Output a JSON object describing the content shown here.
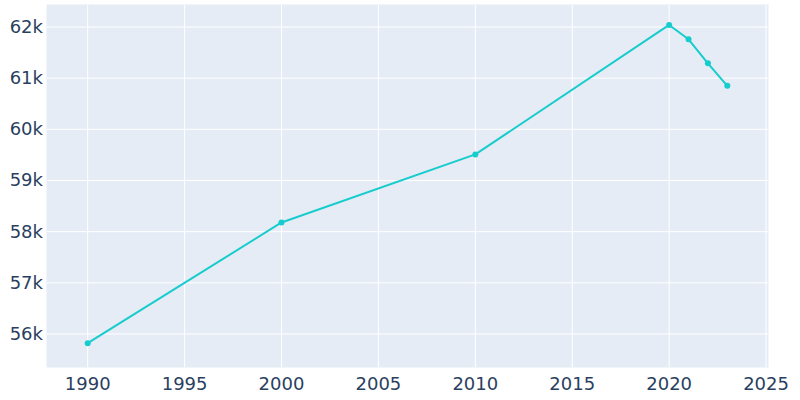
{
  "chart_data": {
    "type": "line",
    "x": [
      1990,
      2000,
      2010,
      2020,
      2021,
      2022,
      2023
    ],
    "values": [
      55820,
      58180,
      59510,
      62040,
      61760,
      61290,
      60850
    ],
    "color": "#17cccc",
    "marker": "circle",
    "xlim": [
      1987.9,
      2025.1
    ],
    "xticks": [
      1990,
      1995,
      2000,
      2005,
      2010,
      2015,
      2020,
      2025
    ],
    "ylim": [
      55355,
      62430
    ],
    "yticks": [
      {
        "value": 56000,
        "label": "56k"
      },
      {
        "value": 57000,
        "label": "57k"
      },
      {
        "value": 58000,
        "label": "58k"
      },
      {
        "value": 59000,
        "label": "59k"
      },
      {
        "value": 60000,
        "label": "60k"
      },
      {
        "value": 61000,
        "label": "61k"
      },
      {
        "value": 62000,
        "label": "62k"
      }
    ],
    "grid": true
  }
}
